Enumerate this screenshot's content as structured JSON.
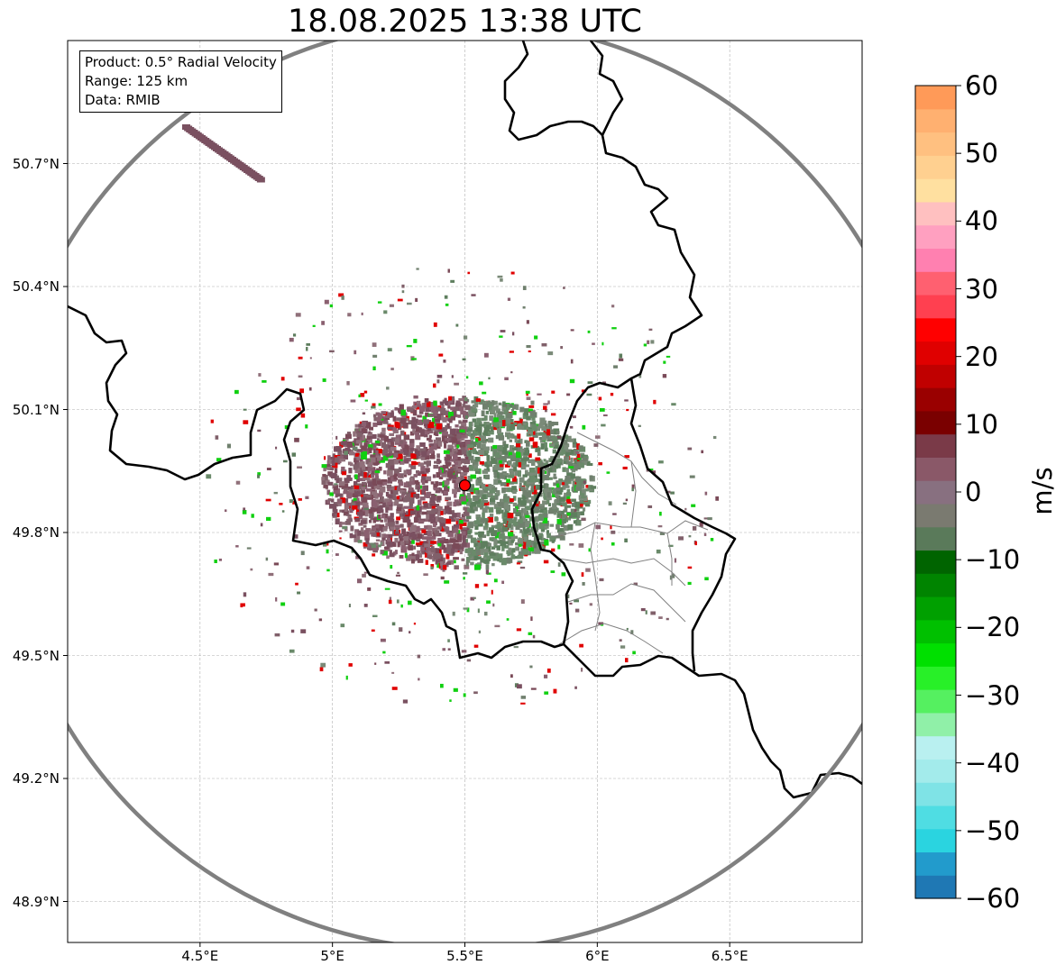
{
  "title": "18.08.2025 13:38 UTC",
  "info_box": {
    "product": "Product: 0.5° Radial Velocity",
    "range": "Range: 125 km",
    "data": "Data: RMIB"
  },
  "axes": {
    "lat_ticks": [
      "50.7°N",
      "50.4°N",
      "50.1°N",
      "49.8°N",
      "49.5°N",
      "49.2°N",
      "48.9°N"
    ],
    "lat_values": [
      50.7,
      50.4,
      50.1,
      49.8,
      49.5,
      49.2,
      48.9
    ],
    "lon_ticks": [
      "4.5°E",
      "5°E",
      "5.5°E",
      "6°E",
      "6.5°E"
    ],
    "lon_values": [
      4.5,
      5.0,
      5.5,
      6.0,
      6.5
    ],
    "lon_range": [
      4.0,
      7.0
    ],
    "lat_range": [
      48.8,
      51.0
    ],
    "grid": true
  },
  "radar": {
    "lon": 5.5,
    "lat": 49.915,
    "range_km": 125,
    "marker_color": "#ff0000"
  },
  "colorbar": {
    "unit": "m/s",
    "ticks": [
      "60",
      "50",
      "40",
      "30",
      "20",
      "10",
      "0",
      "−10",
      "−20",
      "−30",
      "−40",
      "−50",
      "−60"
    ],
    "tick_values": [
      60,
      50,
      40,
      30,
      20,
      10,
      0,
      -10,
      -20,
      -30,
      -40,
      -50,
      -60
    ],
    "range": [
      -60,
      60
    ],
    "colors": [
      "#1f78b4",
      "#229bcc",
      "#2ad4e0",
      "#4fdde3",
      "#7fe3e6",
      "#a3ebeb",
      "#b9f0f0",
      "#90f0a8",
      "#55f060",
      "#28f028",
      "#00e000",
      "#00c000",
      "#00a000",
      "#008400",
      "#006400",
      "#5a7a5a",
      "#7a7a70",
      "#887080",
      "#8a5868",
      "#7a3a48",
      "#7a0000",
      "#9a0000",
      "#c00000",
      "#e00000",
      "#ff0000",
      "#ff4050",
      "#ff6070",
      "#ff80b0",
      "#ffa0c0",
      "#ffc0c0",
      "#ffe0a0",
      "#ffd090",
      "#ffc080",
      "#ffb070",
      "#ff9a58"
    ]
  }
}
